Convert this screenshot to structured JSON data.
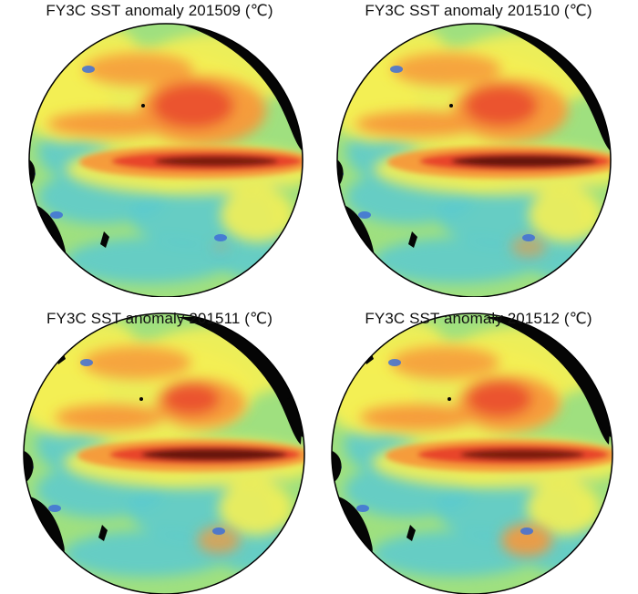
{
  "panels": [
    {
      "title": "FY3C SST anomaly 201509 (℃)",
      "month": "201509"
    },
    {
      "title": "FY3C SST anomaly 201510 (℃)",
      "month": "201510"
    },
    {
      "title": "FY3C SST anomaly 201511 (℃)",
      "month": "201511"
    },
    {
      "title": "FY3C SST anomaly 201512 (℃)",
      "month": "201512"
    }
  ],
  "colors": {
    "ocean_base": "#9fe07f",
    "cool": "#5ccad0",
    "warm_yellow": "#f4ef54",
    "warm_orange": "#f7983a",
    "warm_red": "#e8442a",
    "hot_core": "#5a0d08",
    "land": "#050505",
    "cold_spot": "#3e6fd8"
  },
  "colorbar_unit": "℃"
}
